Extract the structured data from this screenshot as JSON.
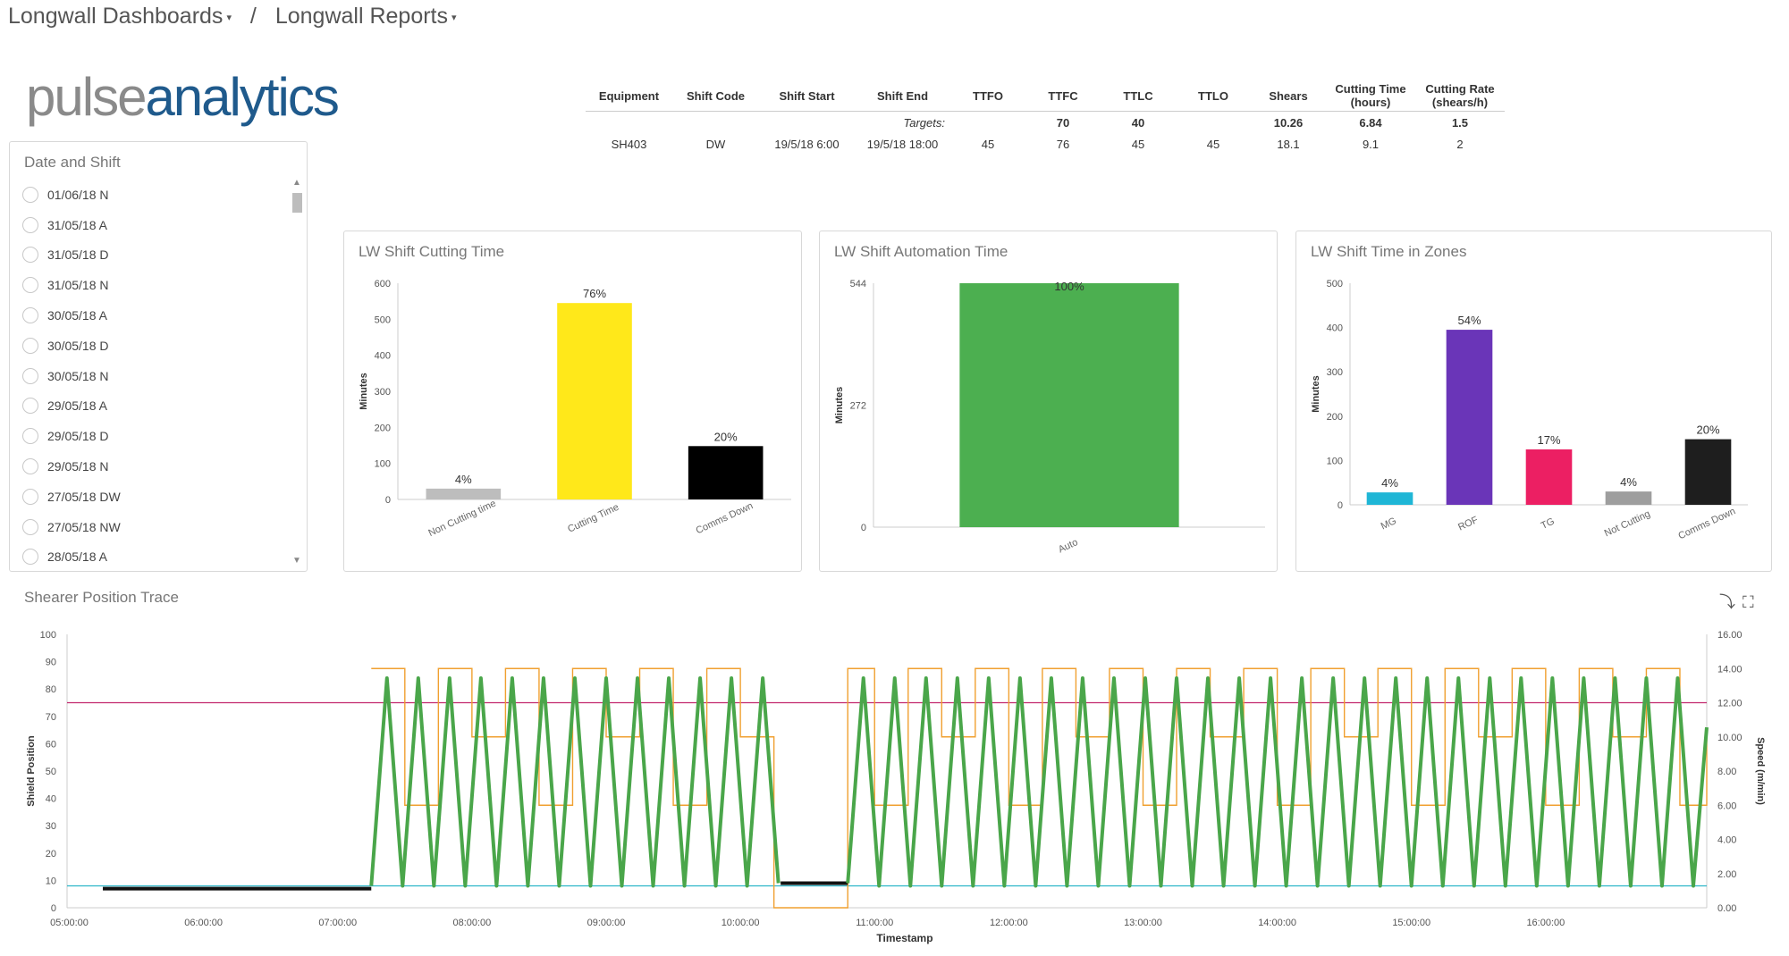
{
  "breadcrumb": {
    "root": "Longwall Dashboards",
    "current": "Longwall Reports"
  },
  "logo": {
    "part1": "pulse",
    "part2": "analytics"
  },
  "date_shift": {
    "title": "Date and Shift",
    "items": [
      "01/06/18 N",
      "31/05/18 A",
      "31/05/18 D",
      "31/05/18 N",
      "30/05/18 A",
      "30/05/18 D",
      "30/05/18 N",
      "29/05/18 A",
      "29/05/18 D",
      "29/05/18 N",
      "27/05/18 DW",
      "27/05/18 NW",
      "28/05/18 A"
    ]
  },
  "summary_table": {
    "headers": [
      "Equipment",
      "Shift Code",
      "Shift Start",
      "Shift End",
      "TTFO",
      "TTFC",
      "TTLC",
      "TTLO",
      "Shears",
      "Cutting Time (hours)",
      "Cutting Rate (shears/h)"
    ],
    "targets_label": "Targets:",
    "targets": {
      "ttfc": "70",
      "ttlc": "40",
      "shears": "10.26",
      "cutting_time": "6.84",
      "cutting_rate": "1.5"
    },
    "row": {
      "equipment": "SH403",
      "shift_code": "DW",
      "shift_start": "19/5/18 6:00",
      "shift_end": "19/5/18 18:00",
      "ttfo": "45",
      "ttfc": "76",
      "ttlc": "45",
      "ttlo": "45",
      "shears": "18.1",
      "cutting_time": "9.1",
      "cutting_rate": "2"
    }
  },
  "colors": {
    "green": "#3a9a3a",
    "red": "#e23b3b",
    "trace_green": "#4aa64a",
    "trace_orange": "#f0a030",
    "trace_magenta": "#c2286e",
    "trace_cyan": "#2cb5c8"
  },
  "chart_data": [
    {
      "type": "bar",
      "title": "LW Shift Cutting Time",
      "ylabel": "Minutes",
      "categories": [
        "Non Cutting time",
        "Cutting Time",
        "Comms Down"
      ],
      "values": [
        30,
        545,
        148
      ],
      "labels": [
        "4%",
        "76%",
        "20%"
      ],
      "colors": [
        "#bdbdbd",
        "#ffe81a",
        "#000000"
      ],
      "ylim": [
        0,
        600
      ],
      "yticks": [
        "0",
        "100",
        "200",
        "300",
        "400",
        "500",
        "600"
      ]
    },
    {
      "type": "bar",
      "title": "LW Shift Automation Time",
      "ylabel": "Minutes",
      "categories": [
        "Auto"
      ],
      "values": [
        544
      ],
      "labels": [
        "100%"
      ],
      "colors": [
        "#4caf50"
      ],
      "ylim": [
        0,
        544
      ],
      "yticks": [
        "0",
        "272",
        "544"
      ]
    },
    {
      "type": "bar",
      "title": "LW Shift Time in Zones",
      "ylabel": "Minutes",
      "categories": [
        "MG",
        "ROF",
        "TG",
        "Not Cutting",
        "Comms Down"
      ],
      "values": [
        28,
        395,
        125,
        30,
        148
      ],
      "labels": [
        "4%",
        "54%",
        "17%",
        "4%",
        "20%"
      ],
      "colors": [
        "#1fb6d6",
        "#6a35b8",
        "#ec1f63",
        "#9e9e9e",
        "#1e1e1e"
      ],
      "ylim": [
        0,
        500
      ],
      "yticks": [
        "0",
        "100",
        "200",
        "300",
        "400",
        "500"
      ]
    },
    {
      "type": "line",
      "title": "Shearer Position Trace",
      "xlabel": "Timestamp",
      "ylabel": "Shield Position",
      "y2label": "Speed (m/min)",
      "xlim": [
        "04:59",
        "17:12"
      ],
      "xticks": [
        "05:00:00",
        "06:00:00",
        "07:00:00",
        "08:00:00",
        "09:00:00",
        "10:00:00",
        "11:00:00",
        "12:00:00",
        "13:00:00",
        "14:00:00",
        "15:00:00",
        "16:00:00"
      ],
      "ylim": [
        0,
        100
      ],
      "yticks": [
        "0",
        "10",
        "20",
        "30",
        "40",
        "50",
        "60",
        "70",
        "80",
        "90",
        "100"
      ],
      "y2lim": [
        0,
        16
      ],
      "y2ticks": [
        "0.00",
        "2.00",
        "4.00",
        "6.00",
        "8.00",
        "10.00",
        "12.00",
        "14.00",
        "16.00"
      ],
      "reference_lines": [
        {
          "y": 75,
          "color": "#c2286e"
        },
        {
          "y": 8,
          "color": "#2cb5c8"
        }
      ],
      "idle_periods": [
        {
          "x": [
            "05:15",
            "07:15"
          ],
          "y": 7
        },
        {
          "x": [
            "10:18",
            "10:48"
          ],
          "y": 9
        }
      ],
      "shield_trace": {
        "color": "#4aa64a",
        "segments": [
          {
            "x": [
              "07:15",
              "07:22",
              "07:29",
              "07:36",
              "07:43",
              "07:50",
              "07:57",
              "08:04",
              "08:11",
              "08:18",
              "08:25",
              "08:32",
              "08:39",
              "08:46",
              "08:53",
              "09:00",
              "09:07",
              "09:14",
              "09:21",
              "09:28",
              "09:35",
              "09:42",
              "09:49",
              "09:56",
              "10:03",
              "10:10",
              "10:17"
            ],
            "y": [
              8,
              84,
              8,
              84,
              8,
              84,
              8,
              84,
              8,
              84,
              8,
              84,
              8,
              84,
              8,
              84,
              8,
              84,
              8,
              84,
              8,
              84,
              8,
              84,
              8,
              84,
              9
            ]
          },
          {
            "x": [
              "10:48",
              "10:55",
              "11:02",
              "11:09",
              "11:16",
              "11:23",
              "11:30",
              "11:37",
              "11:44",
              "11:51",
              "11:58",
              "12:05",
              "12:12",
              "12:19",
              "12:26",
              "12:33",
              "12:40",
              "12:47",
              "12:54",
              "13:01",
              "13:08",
              "13:15",
              "13:22",
              "13:29",
              "13:36",
              "13:43",
              "13:50",
              "13:57",
              "14:04",
              "14:11",
              "14:18",
              "14:25",
              "14:32",
              "14:39",
              "14:46",
              "14:53",
              "15:00",
              "15:07",
              "15:14",
              "15:21",
              "15:28",
              "15:35",
              "15:42",
              "15:49",
              "15:56",
              "16:03",
              "16:10",
              "16:17",
              "16:24",
              "16:31",
              "16:38",
              "16:45",
              "16:52",
              "16:59",
              "17:06",
              "17:12"
            ],
            "y": [
              9,
              84,
              8,
              84,
              8,
              84,
              8,
              84,
              8,
              84,
              8,
              84,
              8,
              84,
              8,
              84,
              8,
              84,
              8,
              84,
              8,
              84,
              8,
              84,
              8,
              84,
              8,
              84,
              8,
              84,
              8,
              84,
              8,
              84,
              8,
              84,
              8,
              84,
              8,
              84,
              8,
              84,
              8,
              84,
              8,
              84,
              8,
              84,
              8,
              84,
              8,
              84,
              8,
              84,
              8,
              66
            ]
          }
        ]
      },
      "speed_trace": {
        "color": "#f0a030",
        "x": [
          "07:15",
          "07:30",
          "07:45",
          "08:00",
          "08:15",
          "08:30",
          "08:45",
          "09:00",
          "09:15",
          "09:30",
          "09:45",
          "10:00",
          "10:15",
          "10:48",
          "11:00",
          "11:15",
          "11:30",
          "11:45",
          "12:00",
          "12:15",
          "12:30",
          "12:45",
          "13:00",
          "13:15",
          "13:30",
          "13:45",
          "14:00",
          "14:15",
          "14:30",
          "14:45",
          "15:00",
          "15:15",
          "15:30",
          "15:45",
          "16:00",
          "16:15",
          "16:30",
          "16:45",
          "17:00",
          "17:12"
        ],
        "y": [
          14,
          6,
          14,
          10,
          14,
          6,
          14,
          10,
          14,
          6,
          14,
          10,
          0,
          14,
          6,
          14,
          10,
          14,
          6,
          14,
          10,
          14,
          6,
          14,
          10,
          14,
          6,
          14,
          10,
          14,
          6,
          14,
          10,
          14,
          6,
          14,
          10,
          14,
          6,
          10
        ]
      }
    }
  ]
}
